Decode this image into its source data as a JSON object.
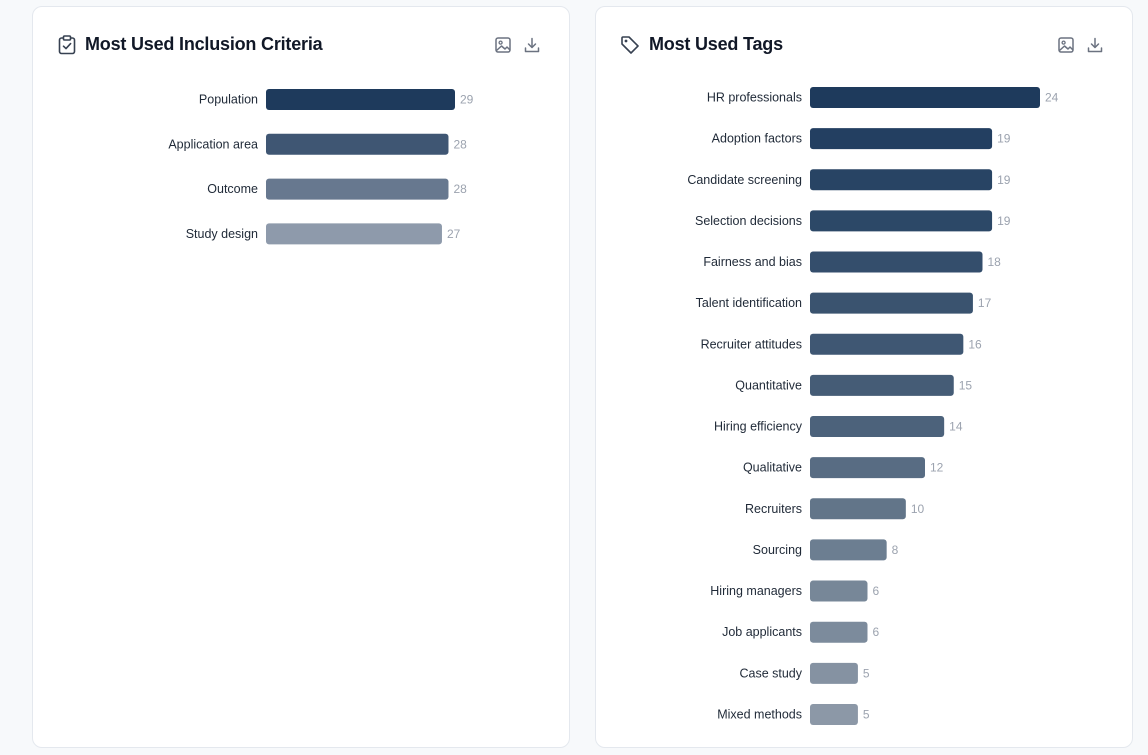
{
  "charts": [
    {
      "id": "inclusion",
      "header": {
        "title": "Most Used Inclusion Criteria",
        "icon": "clipboard-check-icon"
      },
      "toolbar": {
        "image_icon": "image-icon",
        "download_icon": "download-icon"
      },
      "chart_data": {
        "type": "bar",
        "orientation": "horizontal",
        "title": "Most Used Inclusion Criteria",
        "categories": [
          "Population",
          "Application area",
          "Outcome",
          "Study design"
        ],
        "values": [
          29,
          28,
          28,
          27
        ],
        "xlim": [
          0,
          29
        ],
        "grid": false,
        "colors": [
          "#1e3a5c",
          "#3f5673",
          "#67788f",
          "#8e9aab"
        ]
      }
    },
    {
      "id": "tags",
      "header": {
        "title": "Most Used Tags",
        "icon": "tag-icon"
      },
      "toolbar": {
        "image_icon": "image-icon",
        "download_icon": "download-icon"
      },
      "chart_data": {
        "type": "bar",
        "orientation": "horizontal",
        "title": "Most Used Tags",
        "categories": [
          "HR professionals",
          "Adoption factors",
          "Candidate screening",
          "Selection decisions",
          "Fairness and bias",
          "Talent identification",
          "Recruiter attitudes",
          "Quantitative",
          "Hiring efficiency",
          "Qualitative",
          "Recruiters",
          "Sourcing",
          "Hiring managers",
          "Job applicants",
          "Case study",
          "Mixed methods"
        ],
        "values": [
          24,
          19,
          19,
          19,
          18,
          17,
          16,
          15,
          14,
          12,
          10,
          8,
          6,
          6,
          5,
          5
        ],
        "xlim": [
          0,
          24
        ],
        "grid": false,
        "colors": [
          "#1e3a5c",
          "#233f61",
          "#284464",
          "#2c4867",
          "#344e6c",
          "#3a536f",
          "#3f5773",
          "#455c76",
          "#4c627b",
          "#586c83",
          "#627589",
          "#6c7e91",
          "#778798",
          "#7c8b9c",
          "#8592a2",
          "#8c98a7"
        ]
      }
    }
  ]
}
